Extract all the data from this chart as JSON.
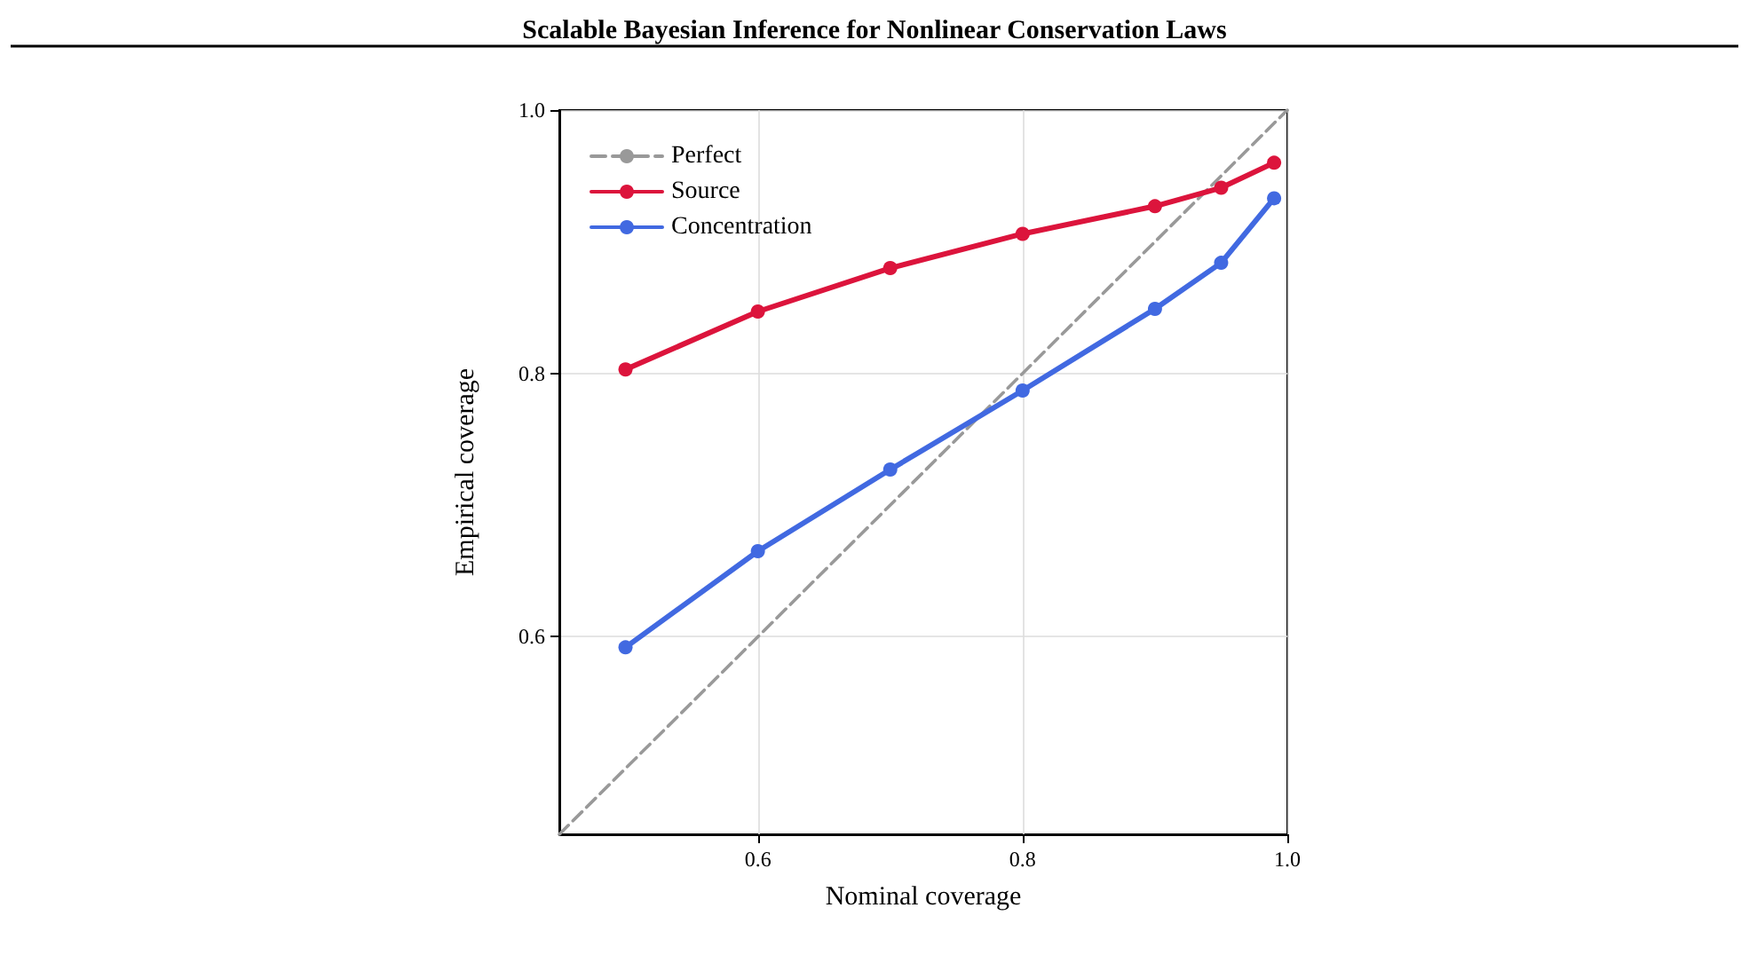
{
  "chart_data": {
    "type": "line",
    "title": "Scalable Bayesian Inference for Nonlinear Conservation Laws",
    "xlabel": "Nominal coverage",
    "ylabel": "Empirical coverage",
    "xlim": [
      0.45,
      1.0
    ],
    "ylim": [
      0.45,
      1.0
    ],
    "xticks": [
      0.6,
      0.8,
      {
        "value": 1.0,
        "label": "1.0"
      }
    ],
    "yticks": [
      0.6,
      0.8,
      {
        "value": 1.0,
        "label": "1.0"
      }
    ],
    "grid": true,
    "legend": "top left",
    "marker": "circle",
    "line_style": "solid",
    "series": [
      {
        "name": "Perfect",
        "color": "#999999",
        "x": [
          0.45,
          1.0
        ],
        "values": [
          0.45,
          1.0
        ],
        "marker": "none",
        "line_style": "dashed"
      },
      {
        "name": "Source",
        "color": "#dc143c",
        "x": [
          0.5,
          0.6,
          0.7,
          0.8,
          0.9,
          0.95,
          0.99
        ],
        "values": [
          0.803,
          0.847,
          0.88,
          0.906,
          0.927,
          0.941,
          0.96
        ]
      },
      {
        "name": "Concentration",
        "color": "#4169e1",
        "x": [
          0.5,
          0.6,
          0.7,
          0.8,
          0.9,
          0.95,
          0.99
        ],
        "values": [
          0.592,
          0.665,
          0.727,
          0.787,
          0.849,
          0.884,
          0.933
        ]
      }
    ]
  }
}
